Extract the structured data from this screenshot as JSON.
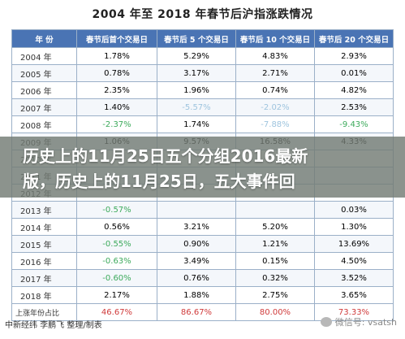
{
  "title": "2004 年至  2018 年春节后沪指涨跌情况",
  "table": {
    "headers": [
      "年  份",
      "春节后首个交易日",
      "春节后 5 个交易日",
      "春节后 10 个交易日",
      "春节后 20 个交易日"
    ],
    "rows": [
      {
        "year": "2004 年",
        "c1": "1.78%",
        "c2": "5.29%",
        "c3": "4.83%",
        "c4": "2.93%"
      },
      {
        "year": "2005 年",
        "c1": "0.78%",
        "c2": "3.17%",
        "c3": "2.71%",
        "c4": "0.01%"
      },
      {
        "year": "2006 年",
        "c1": "2.35%",
        "c2": "1.96%",
        "c3": "0.74%",
        "c4": "4.82%"
      },
      {
        "year": "2007 年",
        "c1": "1.40%",
        "c2": "-5.57%",
        "c3": "-2.02%",
        "c4": "2.53%"
      },
      {
        "year": "2008 年",
        "c1": "-2.37%",
        "c2": "1.74%",
        "c3": "-7.88%",
        "c4": "-9.43%"
      },
      {
        "year": "2009 年",
        "c1": "1.06%",
        "c2": "9.57%",
        "c3": "16.58%",
        "c4": "4.33%"
      },
      {
        "year": "2010 年",
        "c1": "",
        "c2": "",
        "c3": "",
        "c4": ""
      },
      {
        "year": "2011 年",
        "c1": "",
        "c2": "",
        "c3": "",
        "c4": ""
      },
      {
        "year": "2012 年",
        "c1": "",
        "c2": "",
        "c3": "",
        "c4": ""
      },
      {
        "year": "2013 年",
        "c1": "-0.57%",
        "c2": "",
        "c3": "",
        "c4": "0.03%"
      },
      {
        "year": "2014 年",
        "c1": "0.56%",
        "c2": "3.21%",
        "c3": "5.20%",
        "c4": "1.30%"
      },
      {
        "year": "2015 年",
        "c1": "-0.55%",
        "c2": "0.90%",
        "c3": "1.21%",
        "c4": "13.69%"
      },
      {
        "year": "2016 年",
        "c1": "-0.63%",
        "c2": "3.49%",
        "c3": "0.15%",
        "c4": "4.50%"
      },
      {
        "year": "2017 年",
        "c1": "-0.60%",
        "c2": "0.76%",
        "c3": "0.32%",
        "c4": "3.52%"
      },
      {
        "year": "2018 年",
        "c1": "2.17%",
        "c2": "1.88%",
        "c3": "2.75%",
        "c4": "3.65%"
      }
    ],
    "summary": {
      "year": "上涨年份占比",
      "c1": "46.67%",
      "c2": "86.67%",
      "c3": "80.00%",
      "c4": "73.33%"
    }
  },
  "banner": {
    "line1": "历史上的11月25日五个分组2016最新",
    "line2": "版，历史上的11月25日，五大事件回"
  },
  "footer": "中新经纬  李鹏飞  整理/制表",
  "watermark": "微信号: vsatsh",
  "colors": {
    "header_bg": "#4a74b4",
    "negative": "#3daa5c",
    "summary": "#d03a3a"
  }
}
